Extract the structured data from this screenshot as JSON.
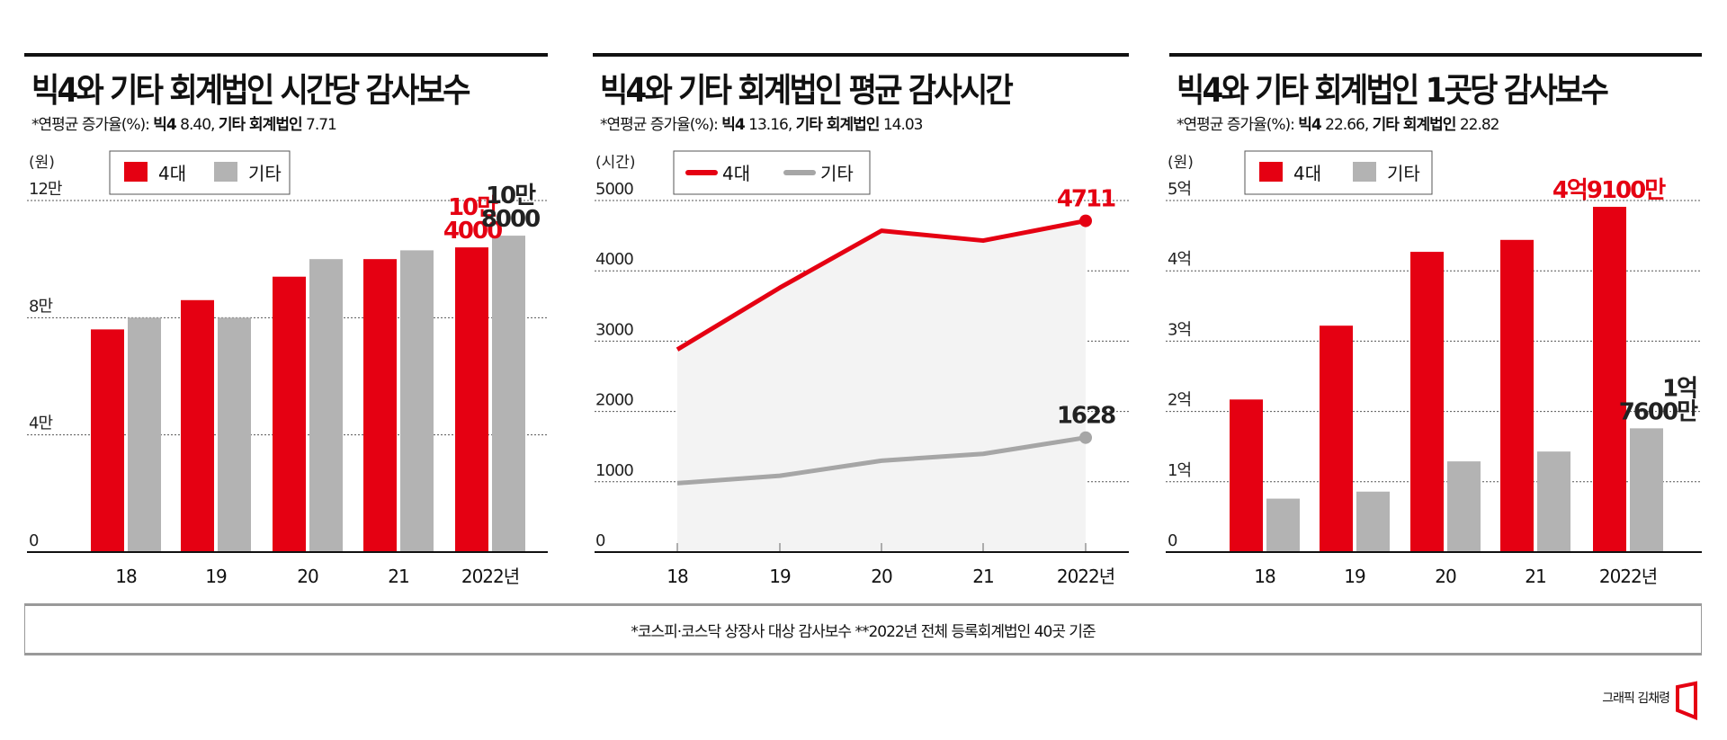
{
  "panels": [
    {
      "title": "빅4와 기타 회계법인 시간당 감사보수",
      "subtitle_prefix": "*연평균 증가율(%): ",
      "subtitle_big4_label": "빅4",
      "subtitle_big4_value": "8.40,",
      "subtitle_other_label": "기타 회계법인",
      "subtitle_other_value": "7.71"
    },
    {
      "title": "빅4와 기타 회계법인 평균 감사시간",
      "subtitle_prefix": "*연평균 증가율(%): ",
      "subtitle_big4_label": "빅4",
      "subtitle_big4_value": "13.16,",
      "subtitle_other_label": "기타 회계법인",
      "subtitle_other_value": "14.03"
    },
    {
      "title": "빅4와 기타 회계법인 1곳당 감사보수",
      "subtitle_prefix": "*연평균 증가율(%): ",
      "subtitle_big4_label": "빅4",
      "subtitle_big4_value": "22.66,",
      "subtitle_other_label": "기타 회계법인",
      "subtitle_other_value": "22.82"
    }
  ],
  "colors": {
    "big4": "#e50012",
    "other": "#b3b3b3",
    "area": "#f3f3f3",
    "text": "#111111"
  },
  "chart_data": [
    {
      "type": "bar",
      "unit_label": "(원)",
      "categories": [
        "18",
        "19",
        "20",
        "21",
        "2022년"
      ],
      "ylim": [
        0,
        120000
      ],
      "yticks": [
        {
          "value": 0,
          "label": "0"
        },
        {
          "value": 40000,
          "label": "4만"
        },
        {
          "value": 80000,
          "label": "8만"
        },
        {
          "value": 120000,
          "label": "12만"
        }
      ],
      "grid": true,
      "legend": "top-left",
      "series": [
        {
          "name": "4대",
          "color": "#e50012",
          "values": [
            76000,
            86000,
            94000,
            100000,
            104000
          ],
          "last_label": [
            "10만",
            "4000"
          ]
        },
        {
          "name": "기타",
          "color": "#b3b3b3",
          "values": [
            80000,
            80000,
            100000,
            103000,
            108000
          ],
          "last_label": [
            "10만",
            "8000"
          ]
        }
      ]
    },
    {
      "type": "line",
      "unit_label": "(시간)",
      "categories": [
        "18",
        "19",
        "20",
        "21",
        "2022년"
      ],
      "ylim": [
        0,
        5000
      ],
      "yticks": [
        {
          "value": 0,
          "label": "0"
        },
        {
          "value": 1000,
          "label": "1000"
        },
        {
          "value": 2000,
          "label": "2000"
        },
        {
          "value": 3000,
          "label": "3000"
        },
        {
          "value": 4000,
          "label": "4000"
        },
        {
          "value": 5000,
          "label": "5000"
        }
      ],
      "grid": true,
      "legend": "top-left",
      "series": [
        {
          "name": "4대",
          "color": "#e50012",
          "values": [
            2880,
            3760,
            4570,
            4430,
            4711
          ],
          "last_label": [
            "4711"
          ]
        },
        {
          "name": "기타",
          "color": "#a6a6a6",
          "values": [
            980,
            1085,
            1300,
            1397,
            1628
          ],
          "last_label": [
            "1628"
          ]
        }
      ]
    },
    {
      "type": "bar",
      "unit_label": "(원)",
      "categories": [
        "18",
        "19",
        "20",
        "21",
        "2022년"
      ],
      "ylim": [
        0,
        500000000
      ],
      "yticks": [
        {
          "value": 0,
          "label": "0"
        },
        {
          "value": 100000000,
          "label": "1억"
        },
        {
          "value": 200000000,
          "label": "2억"
        },
        {
          "value": 300000000,
          "label": "3억"
        },
        {
          "value": 400000000,
          "label": "4억"
        },
        {
          "value": 500000000,
          "label": "5억"
        }
      ],
      "grid": true,
      "legend": "top-left",
      "series": [
        {
          "name": "4대",
          "color": "#e50012",
          "values": [
            217000000,
            322000000,
            427000000,
            444000000,
            491000000
          ],
          "last_label": [
            "4억9100만"
          ]
        },
        {
          "name": "기타",
          "color": "#b3b3b3",
          "values": [
            76000000,
            86000000,
            129000000,
            143000000,
            176000000
          ],
          "last_label": [
            "1억",
            "7600만"
          ]
        }
      ]
    }
  ],
  "footer": {
    "note": "*코스피·코스닥 상장사 대상 감사보수 **2022년 전체 등록회계법인 40곳 기준"
  },
  "credit": {
    "text": "그래픽 김채령"
  }
}
